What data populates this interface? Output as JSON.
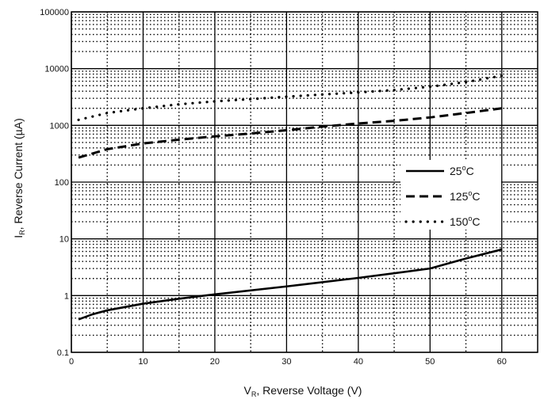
{
  "chart_data": {
    "type": "line",
    "title": "",
    "xlabel": {
      "main": "V",
      "sub": "R",
      "rest": ", Reverse Voltage (V)"
    },
    "ylabel": {
      "main": "I",
      "sub": "R",
      "rest": ", Reverse Current (",
      "greek": "µ",
      "tail": "A)"
    },
    "x_scale": "linear",
    "y_scale": "log",
    "xlim": [
      0,
      65
    ],
    "ylim": [
      0.1,
      100000
    ],
    "x_ticks": [
      0,
      10,
      20,
      30,
      40,
      50,
      60
    ],
    "x_tick_labels": [
      "0",
      "10",
      "20",
      "30",
      "40",
      "50",
      "60"
    ],
    "y_ticks": [
      0.1,
      1,
      10,
      100,
      1000,
      10000,
      100000
    ],
    "y_tick_labels": [
      "0.1",
      "1",
      "10",
      "100",
      "1000",
      "10000",
      "100000"
    ],
    "grid": {
      "major": true,
      "minor": true,
      "minor_style": "dotted"
    },
    "legend_placement": "right",
    "series": [
      {
        "name": "25",
        "name_suffix": "C",
        "style": "solid",
        "x": [
          1,
          3,
          5,
          10,
          15,
          20,
          30,
          40,
          50,
          55,
          60
        ],
        "y": [
          0.38,
          0.47,
          0.55,
          0.72,
          0.88,
          1.05,
          1.45,
          2.05,
          3.0,
          4.5,
          6.5
        ]
      },
      {
        "name": "125",
        "name_suffix": "C",
        "style": "dashed",
        "x": [
          1,
          5,
          10,
          15,
          20,
          25,
          30,
          35,
          40,
          45,
          50,
          55,
          60
        ],
        "y": [
          270,
          380,
          480,
          560,
          640,
          720,
          820,
          950,
          1080,
          1200,
          1380,
          1650,
          2000
        ]
      },
      {
        "name": "150",
        "name_suffix": "C",
        "style": "dotted",
        "x": [
          1,
          5,
          10,
          15,
          20,
          25,
          30,
          35,
          40,
          45,
          50,
          55,
          60
        ],
        "y": [
          1250,
          1650,
          2000,
          2350,
          2650,
          2900,
          3200,
          3500,
          3800,
          4200,
          4800,
          5800,
          7500
        ]
      }
    ]
  },
  "colors": {
    "line": "#000000",
    "grid": "#000000",
    "background": "#ffffff"
  }
}
